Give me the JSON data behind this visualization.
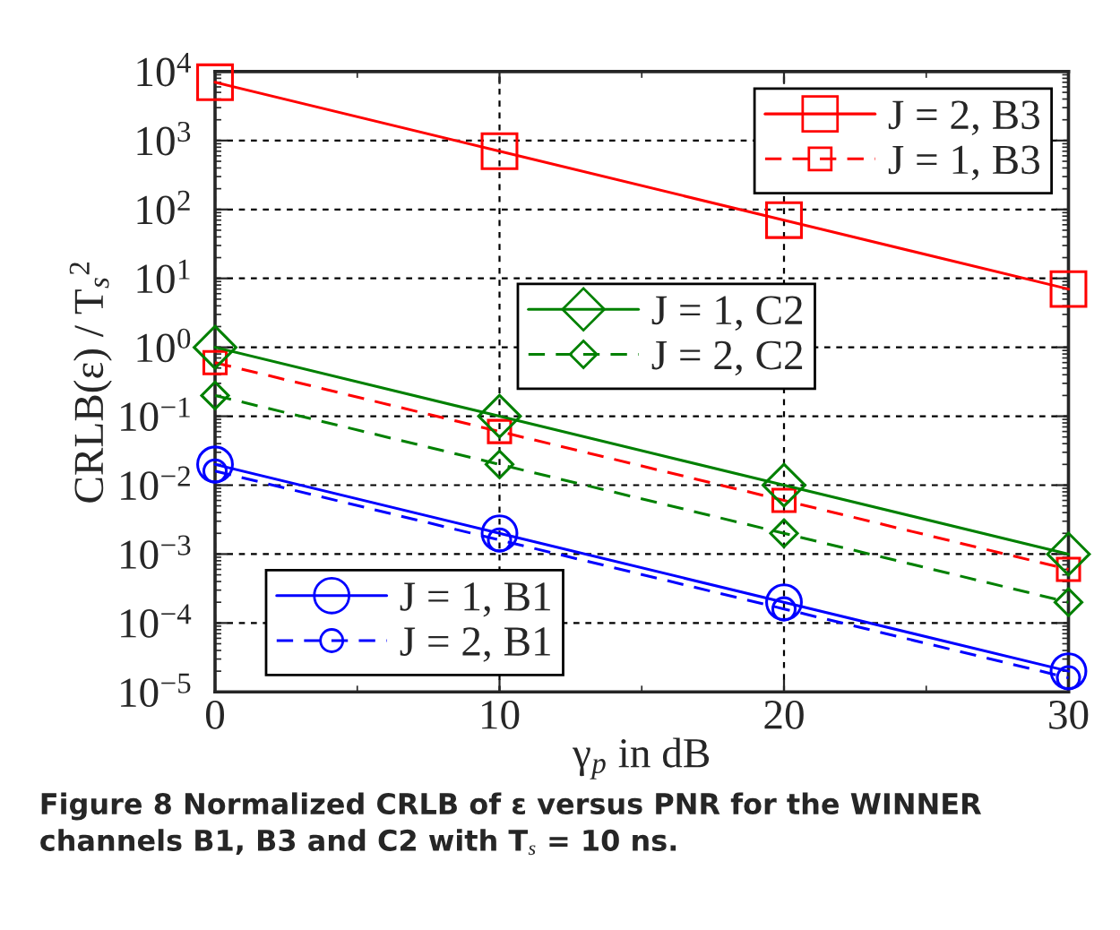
{
  "chart_data": {
    "type": "line",
    "xlabel": "γ$_{p}$ in dB",
    "ylabel": "CRLB(ε) / T$_{s}$$^{2}$",
    "x": [
      0,
      10,
      20,
      30
    ],
    "series": [
      {
        "name": "J = 2, B3",
        "color": "#ff0000",
        "marker": "square",
        "line_style": "solid",
        "values": [
          7000,
          700,
          70,
          7
        ]
      },
      {
        "name": "J = 1, B3",
        "color": "#ff0000",
        "marker": "square",
        "line_style": "dashed",
        "values": [
          0.6,
          0.06,
          0.006,
          0.0006
        ]
      },
      {
        "name": "J = 1, C2",
        "color": "#008000",
        "marker": "diamond",
        "line_style": "solid",
        "values": [
          1,
          0.1,
          0.01,
          0.001
        ]
      },
      {
        "name": "J = 2, C2",
        "color": "#008000",
        "marker": "diamond",
        "line_style": "dashed",
        "values": [
          0.2,
          0.02,
          0.002,
          0.0002
        ]
      },
      {
        "name": "J = 1, B1",
        "color": "#0000ff",
        "marker": "circle",
        "line_style": "solid",
        "values": [
          0.02,
          0.002,
          0.0002,
          2e-05
        ]
      },
      {
        "name": "J = 2, B1",
        "color": "#0000ff",
        "marker": "circle",
        "line_style": "dashed",
        "values": [
          0.016,
          0.0016,
          0.00016,
          1.6e-05
        ]
      }
    ],
    "log": "y",
    "grid": true,
    "legend": "top right",
    "xlim": [
      0,
      30
    ],
    "xticks": [
      0,
      10,
      20,
      30
    ],
    "ylim": [
      1e-05,
      10000
    ],
    "yticks": [
      {
        "value": 1e-05,
        "label": "10$^{−5}$"
      },
      {
        "value": 0.0001,
        "label": "10$^{−4}$"
      },
      {
        "value": 0.001,
        "label": "10$^{−3}$"
      },
      {
        "value": 0.01,
        "label": "10$^{−2}$"
      },
      {
        "value": 0.1,
        "label": "10$^{−1}$"
      },
      {
        "value": 1,
        "label": "10$^{0}$"
      },
      {
        "value": 10,
        "label": "10$^{1}$"
      },
      {
        "value": 100,
        "label": "10$^{2}$"
      },
      {
        "value": 1000,
        "label": "10$^{3}$"
      },
      {
        "value": 10000,
        "label": "10$^{4}$"
      }
    ],
    "annotations": [
      "Figure 8 Normalized CRLB of ε versus PNR for the WINNER channels B1, B3 and C2 with T$_{s}$ = 10 ns."
    ]
  }
}
